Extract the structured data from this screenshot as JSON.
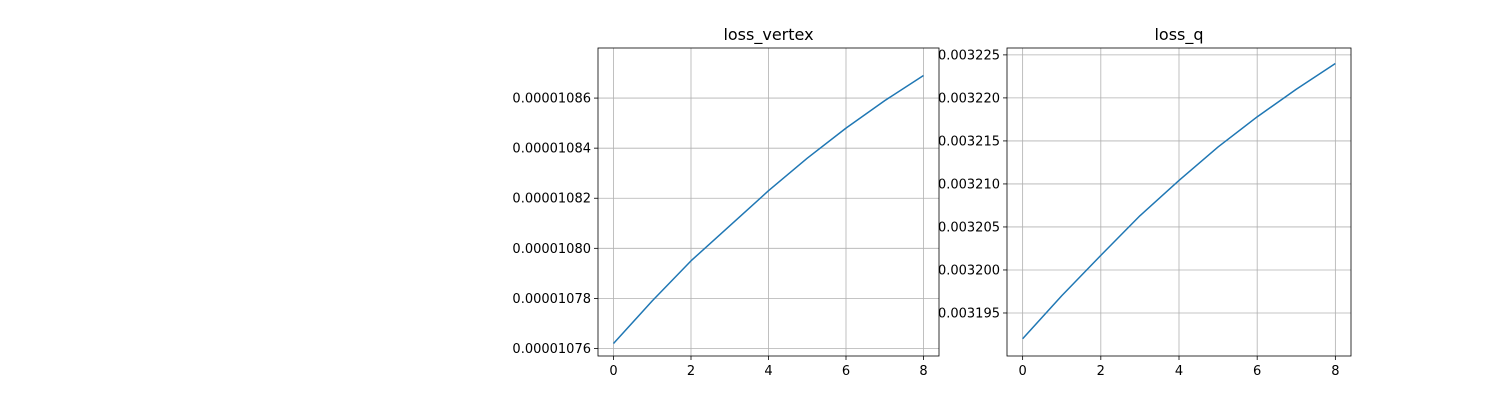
{
  "chart_data": [
    {
      "type": "line",
      "title": "loss_vertex",
      "xlabel": "",
      "ylabel": "",
      "grid": true,
      "xlim": [
        -0.4,
        8.4
      ],
      "ylim": [
        1.0757e-05,
        1.088e-05
      ],
      "xticks": [
        0,
        2,
        4,
        6,
        8
      ],
      "xtick_labels": [
        "0",
        "2",
        "4",
        "6",
        "8"
      ],
      "yticks": [
        1.076e-05,
        1.078e-05,
        1.08e-05,
        1.082e-05,
        1.084e-05,
        1.086e-05
      ],
      "ytick_labels": [
        "0.00001076",
        "0.00001078",
        "0.00001080",
        "0.00001082",
        "0.00001084",
        "0.00001086"
      ],
      "color": "#1f77b4",
      "series": [
        {
          "x": [
            0,
            1,
            2,
            3,
            4,
            5,
            6,
            7,
            8
          ],
          "y": [
            1.0762e-05,
            1.0779e-05,
            1.0795e-05,
            1.0809e-05,
            1.0823e-05,
            1.0836e-05,
            1.0848e-05,
            1.0859e-05,
            1.0869e-05
          ]
        }
      ]
    },
    {
      "type": "line",
      "title": "loss_q",
      "xlabel": "",
      "ylabel": "",
      "grid": true,
      "xlim": [
        -0.4,
        8.4
      ],
      "ylim": [
        0.00319,
        0.0032258
      ],
      "xticks": [
        0,
        2,
        4,
        6,
        8
      ],
      "xtick_labels": [
        "0",
        "2",
        "4",
        "6",
        "8"
      ],
      "yticks": [
        0.003195,
        0.0032,
        0.003205,
        0.00321,
        0.003215,
        0.00322,
        0.003225
      ],
      "ytick_labels": [
        "0.003195",
        "0.003200",
        "0.003205",
        "0.003210",
        "0.003215",
        "0.003220",
        "0.003225"
      ],
      "color": "#1f77b4",
      "series": [
        {
          "x": [
            0,
            1,
            2,
            3,
            4,
            5,
            6,
            7,
            8
          ],
          "y": [
            0.003192,
            0.003197,
            0.0032017,
            0.0032063,
            0.0032104,
            0.0032143,
            0.0032178,
            0.003221,
            0.003224
          ]
        }
      ]
    }
  ]
}
